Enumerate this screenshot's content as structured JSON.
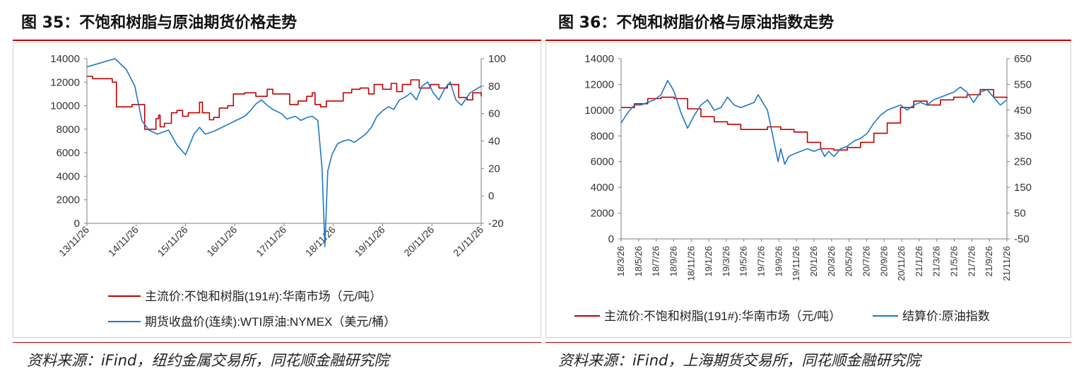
{
  "colors": {
    "primary": "#c00000",
    "secondary": "#1f77c4",
    "axis": "#7f7f7f"
  },
  "left": {
    "title": "图 35：不饱和树脂与原油期货价格走势",
    "source": "资料来源：iFind，纽约金属交易所，同花顺金融研究院",
    "legend": [
      "主流价:不饱和树脂(191#):华南市场（元/吨）",
      "期货收盘价(连续):WTI原油:NYMEX（美元/桶）"
    ]
  },
  "right": {
    "title": "图 36：不饱和树脂价格与原油指数走势",
    "source": "资料来源：iFind，上海期货交易所，同花顺金融研究院",
    "legend": [
      "主流价:不饱和树脂(191#):华南市场（元/吨）",
      "结算价:原油指数"
    ]
  },
  "chart_data": [
    {
      "type": "line",
      "x_ticks": [
        "13/11/26",
        "14/11/26",
        "15/11/26",
        "16/11/26",
        "17/11/26",
        "18/11/26",
        "19/11/26",
        "20/11/26",
        "21/11/26"
      ],
      "y_left": {
        "min": 0,
        "max": 14000,
        "ticks": [
          0,
          2000,
          4000,
          6000,
          8000,
          10000,
          12000,
          14000
        ]
      },
      "y_right": {
        "min": -20,
        "max": 100,
        "ticks": [
          -20,
          0,
          20,
          40,
          60,
          80,
          100
        ]
      },
      "series": [
        {
          "name": "主流价:不饱和树脂(191#):华南市场（元/吨）",
          "axis": "left",
          "color": "#c00000",
          "step": true,
          "points": [
            [
              0,
              12500
            ],
            [
              0.2,
              12300
            ],
            [
              0.9,
              12000
            ],
            [
              1.05,
              9900
            ],
            [
              1.6,
              10100
            ],
            [
              1.95,
              10100
            ],
            [
              2.05,
              8000
            ],
            [
              2.15,
              8000
            ],
            [
              2.3,
              8000
            ],
            [
              2.45,
              8900
            ],
            [
              2.55,
              9200
            ],
            [
              2.6,
              8200
            ],
            [
              2.75,
              8500
            ],
            [
              3.0,
              9400
            ],
            [
              3.2,
              9600
            ],
            [
              3.4,
              9100
            ],
            [
              3.6,
              9400
            ],
            [
              4.0,
              10300
            ],
            [
              4.1,
              9400
            ],
            [
              4.35,
              8800
            ],
            [
              4.5,
              9000
            ],
            [
              4.7,
              9800
            ],
            [
              5.0,
              10000
            ],
            [
              5.2,
              11000
            ],
            [
              5.6,
              11100
            ],
            [
              6.0,
              10800
            ],
            [
              6.4,
              11400
            ],
            [
              6.6,
              11000
            ],
            [
              6.95,
              11000
            ],
            [
              7.2,
              10100
            ],
            [
              7.5,
              10400
            ],
            [
              7.8,
              10800
            ],
            [
              8.0,
              11100
            ],
            [
              8.1,
              10100
            ],
            [
              8.3,
              9900
            ],
            [
              8.5,
              10400
            ],
            [
              8.9,
              10400
            ],
            [
              9.1,
              11100
            ],
            [
              9.4,
              11400
            ],
            [
              9.7,
              11500
            ],
            [
              10.0,
              11000
            ],
            [
              10.2,
              11800
            ],
            [
              10.5,
              11400
            ],
            [
              10.8,
              11900
            ],
            [
              11.0,
              11200
            ],
            [
              11.2,
              11800
            ],
            [
              11.5,
              12200
            ],
            [
              11.8,
              11500
            ],
            [
              12.2,
              11800
            ],
            [
              12.5,
              11500
            ],
            [
              12.8,
              11800
            ],
            [
              13.2,
              10700
            ],
            [
              13.5,
              10500
            ],
            [
              13.7,
              11100
            ],
            [
              14.0,
              10800
            ]
          ]
        },
        {
          "name": "期货收盘价(连续):WTI原油:NYMEX（美元/桶）",
          "axis": "right",
          "color": "#1f77c4",
          "step": false,
          "points": [
            [
              0,
              94
            ],
            [
              0.5,
              97
            ],
            [
              1.0,
              100
            ],
            [
              1.4,
              92
            ],
            [
              1.7,
              80
            ],
            [
              1.95,
              55
            ],
            [
              2.05,
              52
            ],
            [
              2.2,
              48
            ],
            [
              2.5,
              45
            ],
            [
              2.9,
              48
            ],
            [
              3.2,
              37
            ],
            [
              3.5,
              30
            ],
            [
              3.8,
              45
            ],
            [
              4.0,
              50
            ],
            [
              4.2,
              45
            ],
            [
              4.5,
              47
            ],
            [
              4.8,
              50
            ],
            [
              5.0,
              52
            ],
            [
              5.3,
              55
            ],
            [
              5.6,
              58
            ],
            [
              5.8,
              62
            ],
            [
              6.0,
              67
            ],
            [
              6.2,
              70
            ],
            [
              6.4,
              66
            ],
            [
              6.6,
              63
            ],
            [
              6.9,
              60
            ],
            [
              7.1,
              56
            ],
            [
              7.4,
              58
            ],
            [
              7.6,
              55
            ],
            [
              7.8,
              57
            ],
            [
              8.0,
              58
            ],
            [
              8.2,
              55
            ],
            [
              8.35,
              20
            ],
            [
              8.45,
              -37
            ],
            [
              8.55,
              18
            ],
            [
              8.7,
              30
            ],
            [
              8.9,
              38
            ],
            [
              9.1,
              40
            ],
            [
              9.3,
              41
            ],
            [
              9.5,
              39
            ],
            [
              9.7,
              42
            ],
            [
              9.9,
              45
            ],
            [
              10.1,
              50
            ],
            [
              10.3,
              58
            ],
            [
              10.5,
              62
            ],
            [
              10.7,
              65
            ],
            [
              10.9,
              63
            ],
            [
              11.1,
              70
            ],
            [
              11.3,
              72
            ],
            [
              11.5,
              75
            ],
            [
              11.7,
              70
            ],
            [
              11.9,
              80
            ],
            [
              12.1,
              83
            ],
            [
              12.3,
              75
            ],
            [
              12.5,
              70
            ],
            [
              12.7,
              78
            ],
            [
              12.9,
              83
            ],
            [
              13.1,
              70
            ],
            [
              13.3,
              66
            ],
            [
              13.6,
              75
            ],
            [
              14.0,
              80
            ]
          ]
        }
      ]
    },
    {
      "type": "line",
      "x_ticks": [
        "18/3/26",
        "18/5/26",
        "18/7/26",
        "18/9/26",
        "18/11/26",
        "19/1/26",
        "19/3/26",
        "19/5/26",
        "19/7/26",
        "19/9/26",
        "19/11/26",
        "20/1/26",
        "20/3/26",
        "20/5/26",
        "20/7/26",
        "20/9/26",
        "20/11/26",
        "21/1/26",
        "21/3/26",
        "21/5/26",
        "21/7/26",
        "21/9/26",
        "21/11/26"
      ],
      "y_left": {
        "min": 0,
        "max": 14000,
        "ticks": [
          0,
          2000,
          4000,
          6000,
          8000,
          10000,
          12000,
          14000
        ]
      },
      "y_right": {
        "min": -50,
        "max": 650,
        "ticks": [
          -50,
          50,
          150,
          250,
          350,
          450,
          550,
          650
        ]
      },
      "series": [
        {
          "name": "主流价:不饱和树脂(191#):华南市场（元/吨）",
          "axis": "left",
          "color": "#c00000",
          "step": true,
          "points": [
            [
              0,
              10200
            ],
            [
              1,
              10500
            ],
            [
              2,
              10900
            ],
            [
              3,
              11000
            ],
            [
              4,
              10900
            ],
            [
              5,
              10100
            ],
            [
              6,
              9500
            ],
            [
              7,
              9100
            ],
            [
              8,
              8900
            ],
            [
              9,
              8500
            ],
            [
              10,
              8500
            ],
            [
              11,
              8700
            ],
            [
              12,
              8500
            ],
            [
              13,
              8300
            ],
            [
              14,
              7500
            ],
            [
              15,
              7000
            ],
            [
              16,
              6900
            ],
            [
              17,
              7100
            ],
            [
              18,
              7500
            ],
            [
              19,
              8200
            ],
            [
              20,
              9000
            ],
            [
              21,
              10200
            ],
            [
              22,
              10700
            ],
            [
              23,
              10400
            ],
            [
              24,
              10800
            ],
            [
              25,
              11000
            ],
            [
              26,
              11200
            ],
            [
              27,
              11600
            ],
            [
              28,
              11000
            ],
            [
              29,
              10900
            ]
          ]
        },
        {
          "name": "结算价:原油指数",
          "axis": "right",
          "color": "#1f77c4",
          "step": false,
          "points": [
            [
              0,
              400
            ],
            [
              0.5,
              440
            ],
            [
              1,
              470
            ],
            [
              1.5,
              470
            ],
            [
              2,
              480
            ],
            [
              2.5,
              490
            ],
            [
              3,
              510
            ],
            [
              3.5,
              565
            ],
            [
              3.8,
              540
            ],
            [
              4,
              520
            ],
            [
              4.5,
              440
            ],
            [
              5,
              380
            ],
            [
              5.5,
              430
            ],
            [
              6,
              470
            ],
            [
              6.5,
              490
            ],
            [
              7,
              450
            ],
            [
              7.5,
              460
            ],
            [
              8,
              500
            ],
            [
              8.5,
              470
            ],
            [
              9,
              460
            ],
            [
              9.5,
              470
            ],
            [
              10,
              480
            ],
            [
              10.3,
              510
            ],
            [
              11,
              450
            ],
            [
              11.2,
              400
            ],
            [
              11.6,
              300
            ],
            [
              11.8,
              250
            ],
            [
              12,
              300
            ],
            [
              12.3,
              240
            ],
            [
              12.6,
              270
            ],
            [
              13,
              280
            ],
            [
              13.5,
              290
            ],
            [
              14,
              300
            ],
            [
              14.5,
              290
            ],
            [
              15,
              300
            ],
            [
              15.3,
              270
            ],
            [
              15.6,
              290
            ],
            [
              16,
              270
            ],
            [
              16.5,
              300
            ],
            [
              17,
              310
            ],
            [
              17.5,
              330
            ],
            [
              18,
              340
            ],
            [
              18.5,
              360
            ],
            [
              19,
              400
            ],
            [
              19.5,
              430
            ],
            [
              20,
              450
            ],
            [
              20.5,
              460
            ],
            [
              21,
              470
            ],
            [
              21.5,
              450
            ],
            [
              22,
              470
            ],
            [
              22.5,
              480
            ],
            [
              23,
              470
            ],
            [
              23.5,
              490
            ],
            [
              24,
              500
            ],
            [
              24.5,
              510
            ],
            [
              25,
              520
            ],
            [
              25.5,
              540
            ],
            [
              26,
              520
            ],
            [
              26.5,
              480
            ],
            [
              27,
              520
            ],
            [
              27.5,
              530
            ],
            [
              28,
              500
            ],
            [
              28.5,
              470
            ],
            [
              29,
              490
            ]
          ]
        }
      ]
    }
  ]
}
